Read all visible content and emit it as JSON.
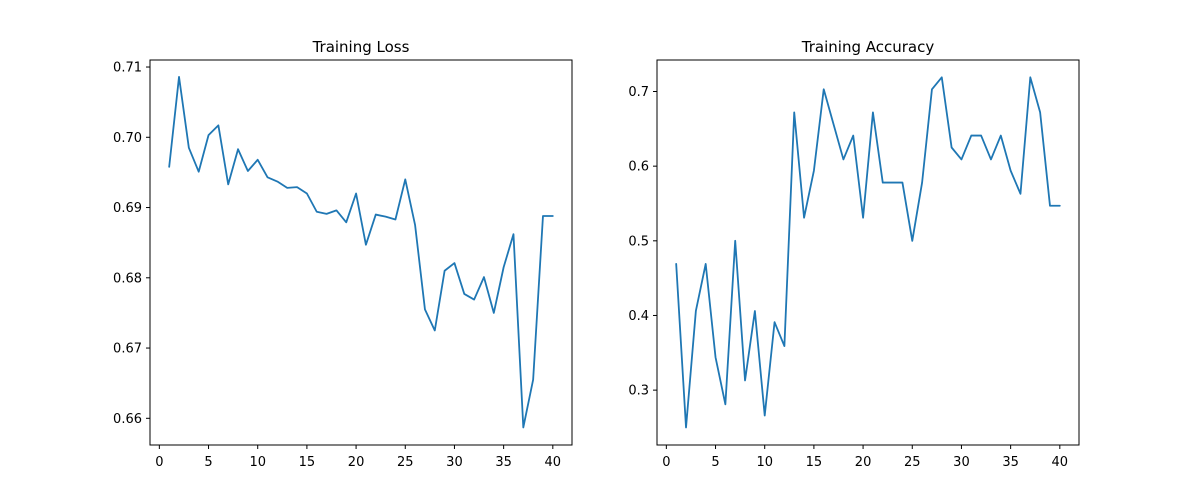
{
  "colors": {
    "series": "#1f77b4",
    "axes": "#000000",
    "background": "#ffffff"
  },
  "chart_data": [
    {
      "type": "line",
      "title": "Training Loss",
      "xlabel": "",
      "ylabel": "",
      "grid": false,
      "legend": "none",
      "xlim": [
        -0.95,
        41.95
      ],
      "ylim": [
        0.6562,
        0.711
      ],
      "xticks": [
        0,
        5,
        10,
        15,
        20,
        25,
        30,
        35,
        40
      ],
      "yticks": [
        0.66,
        0.67,
        0.68,
        0.69,
        0.7,
        0.71
      ],
      "ytick_labels": [
        "0.66",
        "0.67",
        "0.68",
        "0.69",
        "0.70",
        "0.71"
      ],
      "x": [
        1,
        2,
        3,
        4,
        5,
        6,
        7,
        8,
        9,
        10,
        11,
        12,
        13,
        14,
        15,
        16,
        17,
        18,
        19,
        20,
        21,
        22,
        23,
        24,
        25,
        26,
        27,
        28,
        29,
        30,
        31,
        32,
        33,
        34,
        35,
        36,
        37,
        38,
        39,
        40
      ],
      "series": [
        {
          "values": [
            0.6958,
            0.7086,
            0.6985,
            0.6951,
            0.7003,
            0.7017,
            0.6933,
            0.6983,
            0.6952,
            0.6968,
            0.6943,
            0.6937,
            0.6928,
            0.6929,
            0.692,
            0.6894,
            0.6891,
            0.6896,
            0.6879,
            0.692,
            0.6847,
            0.689,
            0.6887,
            0.6883,
            0.694,
            0.6875,
            0.6755,
            0.6725,
            0.681,
            0.6821,
            0.6777,
            0.6769,
            0.6801,
            0.675,
            0.6815,
            0.6862,
            0.6587,
            0.6655,
            0.6888,
            0.6888
          ]
        }
      ]
    },
    {
      "type": "line",
      "title": "Training Accuracy",
      "xlabel": "",
      "ylabel": "",
      "grid": false,
      "legend": "none",
      "xlim": [
        -0.95,
        41.95
      ],
      "ylim": [
        0.2265,
        0.7422
      ],
      "xticks": [
        0,
        5,
        10,
        15,
        20,
        25,
        30,
        35,
        40
      ],
      "yticks": [
        0.3,
        0.4,
        0.5,
        0.6,
        0.7
      ],
      "ytick_labels": [
        "0.3",
        "0.4",
        "0.5",
        "0.6",
        "0.7"
      ],
      "x": [
        1,
        2,
        3,
        4,
        5,
        6,
        7,
        8,
        9,
        10,
        11,
        12,
        13,
        14,
        15,
        16,
        17,
        18,
        19,
        20,
        21,
        22,
        23,
        24,
        25,
        26,
        27,
        28,
        29,
        30,
        31,
        32,
        33,
        34,
        35,
        36,
        37,
        38,
        39,
        40
      ],
      "series": [
        {
          "values": [
            0.469,
            0.25,
            0.406,
            0.469,
            0.344,
            0.281,
            0.5,
            0.313,
            0.406,
            0.266,
            0.391,
            0.359,
            0.672,
            0.531,
            0.594,
            0.703,
            0.656,
            0.609,
            0.641,
            0.531,
            0.672,
            0.578,
            0.578,
            0.578,
            0.5,
            0.578,
            0.703,
            0.719,
            0.625,
            0.609,
            0.641,
            0.641,
            0.609,
            0.641,
            0.594,
            0.563,
            0.719,
            0.672,
            0.547,
            0.547
          ]
        }
      ]
    }
  ]
}
